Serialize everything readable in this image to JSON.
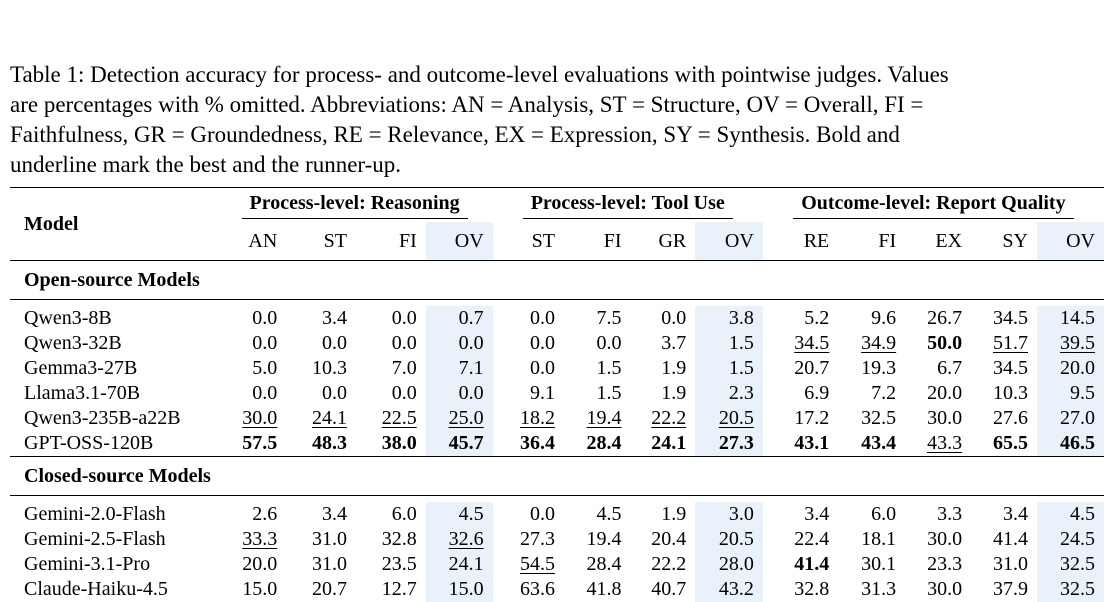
{
  "caption": {
    "lines": [
      "Table 1: Detection accuracy for process- and outcome-level evaluations with pointwise judges. Values",
      "are percentages with % omitted. Abbreviations: AN = Analysis, ST = Structure, OV = Overall, FI =",
      "Faithfulness, GR = Groundedness, RE = Relevance, EX = Expression, SY = Synthesis. Bold and",
      "underline mark the best and the runner-up."
    ]
  },
  "table": {
    "model_header": "Model",
    "groups": [
      {
        "label": "Process-level: Reasoning",
        "cols": [
          "AN",
          "ST",
          "FI",
          "OV"
        ]
      },
      {
        "label": "Process-level: Tool Use",
        "cols": [
          "ST",
          "FI",
          "GR",
          "OV"
        ]
      },
      {
        "label": "Outcome-level: Report Quality",
        "cols": [
          "RE",
          "FI",
          "EX",
          "SY",
          "OV"
        ]
      }
    ],
    "ov_color": "#e9f1fb",
    "sections": [
      {
        "title": "Open-source Models",
        "rows": [
          {
            "name": "Qwen3-8B",
            "values": [
              "0.0",
              "3.4",
              "0.0",
              "0.7",
              "0.0",
              "7.5",
              "0.0",
              "3.8",
              "5.2",
              "9.6",
              "26.7",
              "34.5",
              "14.5"
            ],
            "marks": [
              "",
              "",
              "",
              "",
              "",
              "",
              "",
              "",
              "",
              "",
              "",
              "",
              ""
            ]
          },
          {
            "name": "Qwen3-32B",
            "values": [
              "0.0",
              "0.0",
              "0.0",
              "0.0",
              "0.0",
              "0.0",
              "3.7",
              "1.5",
              "34.5",
              "34.9",
              "50.0",
              "51.7",
              "39.5"
            ],
            "marks": [
              "",
              "",
              "",
              "",
              "",
              "",
              "",
              "",
              "u",
              "u",
              "b",
              "u",
              "u"
            ]
          },
          {
            "name": "Gemma3-27B",
            "values": [
              "5.0",
              "10.3",
              "7.0",
              "7.1",
              "0.0",
              "1.5",
              "1.9",
              "1.5",
              "20.7",
              "19.3",
              "6.7",
              "34.5",
              "20.0"
            ],
            "marks": [
              "",
              "",
              "",
              "",
              "",
              "",
              "",
              "",
              "",
              "",
              "",
              "",
              ""
            ]
          },
          {
            "name": "Llama3.1-70B",
            "values": [
              "0.0",
              "0.0",
              "0.0",
              "0.0",
              "9.1",
              "1.5",
              "1.9",
              "2.3",
              "6.9",
              "7.2",
              "20.0",
              "10.3",
              "9.5"
            ],
            "marks": [
              "",
              "",
              "",
              "",
              "",
              "",
              "",
              "",
              "",
              "",
              "",
              "",
              ""
            ]
          },
          {
            "name": "Qwen3-235B-a22B",
            "values": [
              "30.0",
              "24.1",
              "22.5",
              "25.0",
              "18.2",
              "19.4",
              "22.2",
              "20.5",
              "17.2",
              "32.5",
              "30.0",
              "27.6",
              "27.0"
            ],
            "marks": [
              "u",
              "u",
              "u",
              "u",
              "u",
              "u",
              "u",
              "u",
              "",
              "",
              "",
              "",
              ""
            ]
          },
          {
            "name": "GPT-OSS-120B",
            "values": [
              "57.5",
              "48.3",
              "38.0",
              "45.7",
              "36.4",
              "28.4",
              "24.1",
              "27.3",
              "43.1",
              "43.4",
              "43.3",
              "65.5",
              "46.5"
            ],
            "marks": [
              "b",
              "b",
              "b",
              "b",
              "b",
              "b",
              "b",
              "b",
              "b",
              "b",
              "u",
              "b",
              "b"
            ]
          }
        ]
      },
      {
        "title": "Closed-source Models",
        "rows": [
          {
            "name": "Gemini-2.0-Flash",
            "values": [
              "2.6",
              "3.4",
              "6.0",
              "4.5",
              "0.0",
              "4.5",
              "1.9",
              "3.0",
              "3.4",
              "6.0",
              "3.3",
              "3.4",
              "4.5"
            ],
            "marks": [
              "",
              "",
              "",
              "",
              "",
              "",
              "",
              "",
              "",
              "",
              "",
              "",
              ""
            ]
          },
          {
            "name": "Gemini-2.5-Flash",
            "values": [
              "33.3",
              "31.0",
              "32.8",
              "32.6",
              "27.3",
              "19.4",
              "20.4",
              "20.5",
              "22.4",
              "18.1",
              "30.0",
              "41.4",
              "24.5"
            ],
            "marks": [
              "u",
              "",
              "",
              "u",
              "",
              "",
              "",
              "",
              "",
              "",
              "",
              "",
              ""
            ]
          },
          {
            "name": "Gemini-3.1-Pro",
            "values": [
              "20.0",
              "31.0",
              "23.5",
              "24.1",
              "54.5",
              "28.4",
              "22.2",
              "28.0",
              "41.4",
              "30.1",
              "23.3",
              "31.0",
              "32.5"
            ],
            "marks": [
              "",
              "",
              "",
              "",
              "u",
              "",
              "",
              "",
              "b",
              "",
              "",
              "",
              ""
            ]
          },
          {
            "name": "Claude-Haiku-4.5",
            "values": [
              "15.0",
              "20.7",
              "12.7",
              "15.0",
              "63.6",
              "41.8",
              "40.7",
              "43.2",
              "32.8",
              "31.3",
              "30.0",
              "37.9",
              "32.5"
            ],
            "marks": [
              "",
              "",
              "",
              "",
              "",
              "",
              "",
              "",
              "",
              "",
              "",
              "",
              ""
            ]
          }
        ]
      }
    ]
  }
}
